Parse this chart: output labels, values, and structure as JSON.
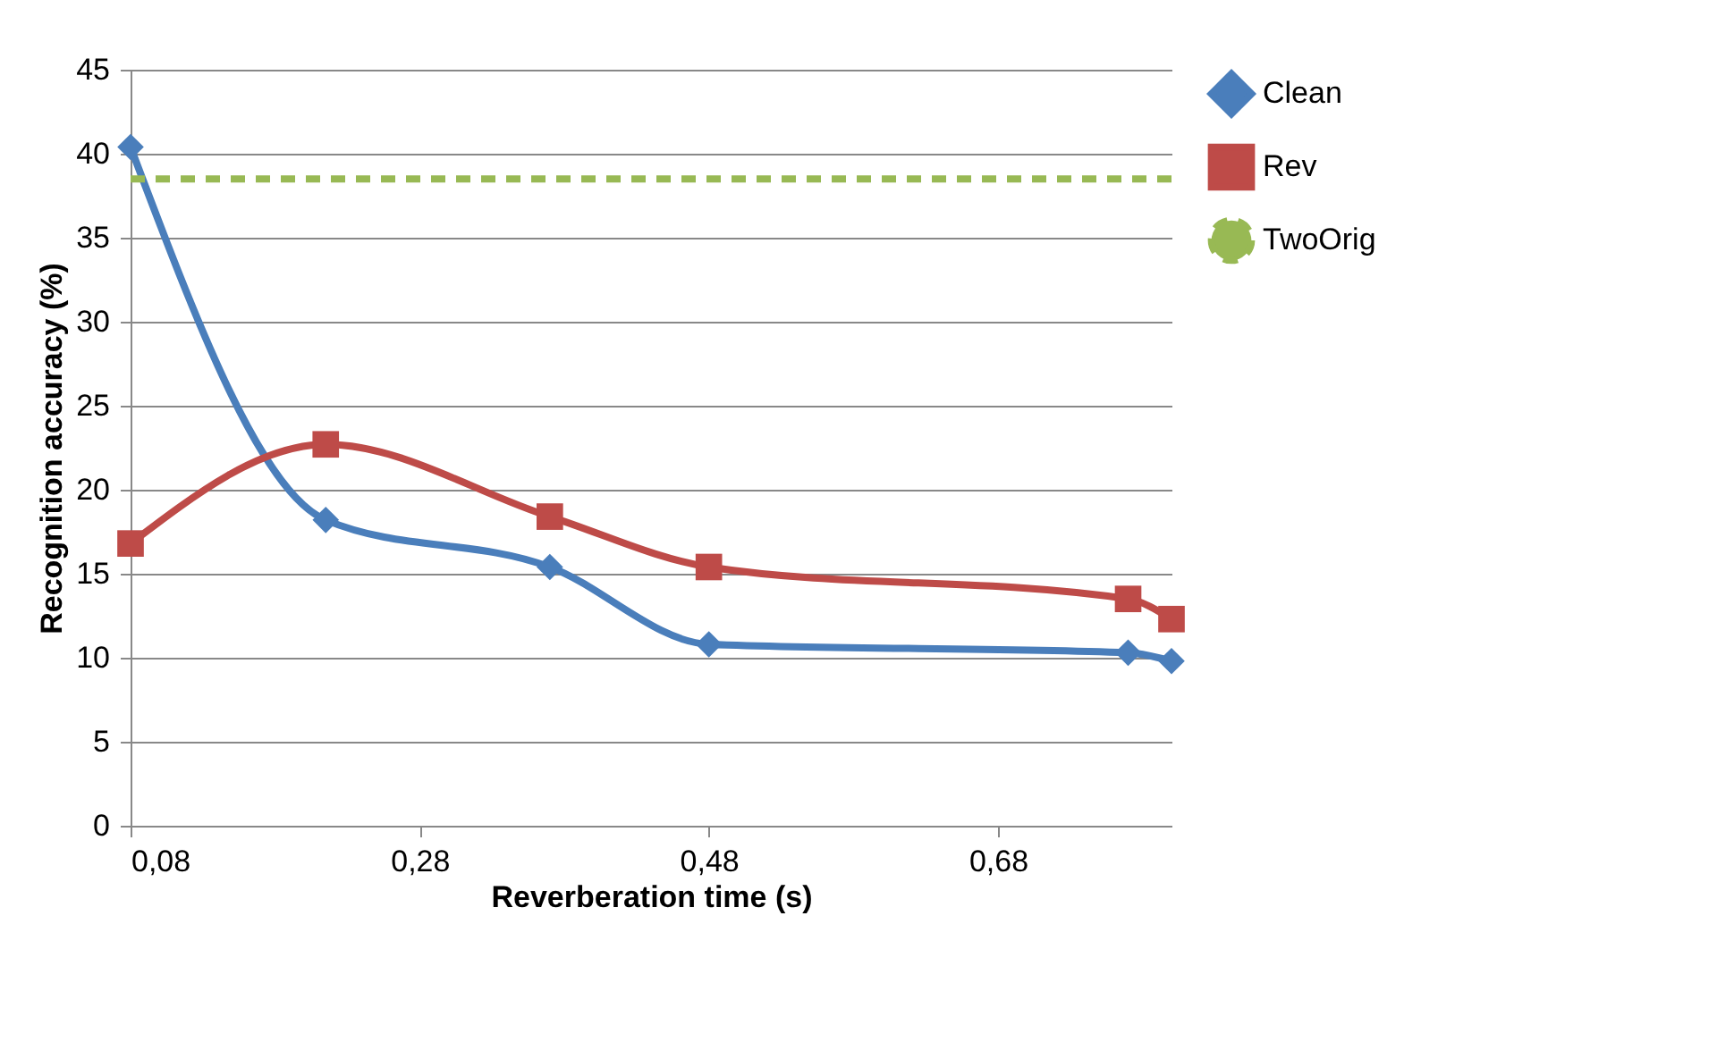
{
  "chart_data": {
    "type": "line",
    "xlabel": "Reverberation time (s)",
    "ylabel": "Recognition accuracy (%)",
    "xlim": [
      0.08,
      0.8
    ],
    "xticks": [
      {
        "value": 0.08,
        "label": "0,08"
      },
      {
        "value": 0.28,
        "label": "0,28"
      },
      {
        "value": 0.48,
        "label": "0,48"
      },
      {
        "value": 0.68,
        "label": "0,68"
      }
    ],
    "ylim": [
      0,
      45
    ],
    "yticks": [
      0,
      5,
      10,
      15,
      20,
      25,
      30,
      35,
      40,
      45
    ],
    "grid": "y",
    "legend": "right",
    "series": [
      {
        "name": "Clean",
        "color": "#4a7ebb",
        "marker": "diamond",
        "line_style": "solid",
        "x": [
          0.08,
          0.215,
          0.37,
          0.48,
          0.77,
          0.8
        ],
        "values": [
          40.4,
          18.2,
          15.4,
          10.8,
          10.3,
          9.8
        ]
      },
      {
        "name": "Rev",
        "color": "#be4b48",
        "marker": "square",
        "line_style": "solid",
        "x": [
          0.08,
          0.215,
          0.37,
          0.48,
          0.77,
          0.8
        ],
        "values": [
          16.8,
          22.7,
          18.4,
          15.4,
          13.5,
          12.3
        ]
      },
      {
        "name": "TwoOrig",
        "color": "#98b954",
        "marker": "none",
        "line_style": "dashed",
        "x": [
          0.08,
          0.8
        ],
        "values": [
          38.5,
          38.5
        ]
      }
    ]
  }
}
